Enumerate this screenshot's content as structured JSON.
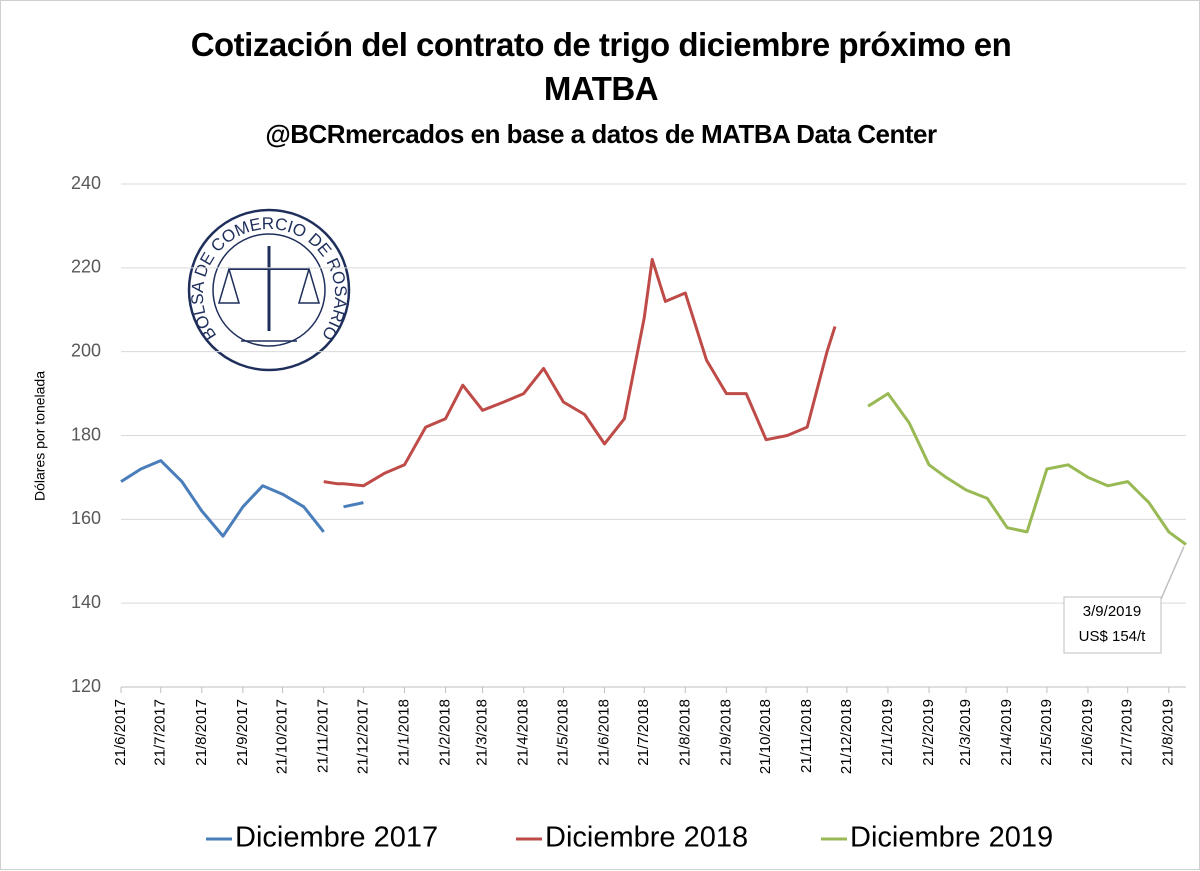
{
  "chart_data": {
    "type": "line",
    "title": "Cotización del contrato de trigo diciembre próximo en MATBA",
    "subtitle": "@BCRmercados en base a datos de MATBA Data Center",
    "y_label": "Dólares por tonelada",
    "logo_text": "BOLSA DE COMERCIO DE ROSARIO",
    "annotation": [
      "3/9/2019",
      "US$ 154/t"
    ],
    "x": [
      "21/6/2017",
      "6/7/2017",
      "21/7/2017",
      "6/8/2017",
      "21/8/2017",
      "6/9/2017",
      "21/9/2017",
      "6/10/2017",
      "21/10/2017",
      "6/11/2017",
      "21/11/2017",
      "1/12/2017",
      "6/12/2017",
      "21/12/2017",
      "6/1/2018",
      "21/1/2018",
      "6/2/2018",
      "21/2/2018",
      "6/3/2018",
      "21/3/2018",
      "6/4/2018",
      "21/4/2018",
      "6/5/2018",
      "21/5/2018",
      "6/6/2018",
      "21/6/2018",
      "6/7/2018",
      "21/7/2018",
      "27/7/2018",
      "6/8/2018",
      "21/8/2018",
      "6/9/2018",
      "21/9/2018",
      "6/10/2018",
      "21/10/2018",
      "6/11/2018",
      "21/11/2018",
      "6/12/2018",
      "12/12/2018",
      "6/1/2019",
      "21/1/2019",
      "6/2/2019",
      "21/2/2019",
      "6/3/2019",
      "21/3/2019",
      "6/4/2019",
      "21/4/2019",
      "6/5/2019",
      "21/5/2019",
      "6/6/2019",
      "21/6/2019",
      "6/7/2019",
      "21/7/2019",
      "6/8/2019",
      "21/8/2019",
      "3/9/2019"
    ],
    "series": [
      {
        "name": "Diciembre 2017",
        "color": "#4a7ebb",
        "values": [
          169,
          172,
          174,
          169,
          162,
          156,
          163,
          168,
          166,
          163,
          157,
          null,
          163,
          164,
          null,
          null,
          null,
          null,
          null,
          null,
          null,
          null,
          null,
          null,
          null,
          null,
          null,
          null,
          null,
          null,
          null,
          null,
          null,
          null,
          null,
          null,
          null,
          null,
          null,
          null,
          null,
          null,
          null,
          null,
          null,
          null,
          null,
          null,
          null,
          null,
          null,
          null,
          null,
          null,
          null,
          null
        ]
      },
      {
        "name": "Diciembre 2018",
        "color": "#be4b48",
        "values": [
          null,
          null,
          null,
          null,
          null,
          null,
          null,
          null,
          null,
          null,
          169,
          168.5,
          168.5,
          168,
          171,
          173,
          182,
          184,
          192,
          186,
          188,
          190,
          196,
          188,
          185,
          178,
          184,
          208,
          222,
          212,
          214,
          198,
          190,
          190,
          179,
          180,
          182,
          200,
          206,
          null,
          null,
          null,
          null,
          null,
          null,
          null,
          null,
          null,
          null,
          null,
          null,
          null,
          null,
          null,
          null,
          null
        ]
      },
      {
        "name": "Diciembre 2019",
        "color": "#98b954",
        "values": [
          null,
          null,
          null,
          null,
          null,
          null,
          null,
          null,
          null,
          null,
          null,
          null,
          null,
          null,
          null,
          null,
          null,
          null,
          null,
          null,
          null,
          null,
          null,
          null,
          null,
          null,
          null,
          null,
          null,
          null,
          null,
          null,
          null,
          null,
          null,
          null,
          null,
          null,
          null,
          187,
          190,
          183,
          173,
          170,
          167,
          165,
          158,
          157,
          172,
          173,
          170,
          168,
          169,
          164,
          157,
          154
        ]
      }
    ],
    "xlim": [
      "21/6/2017",
      "3/9/2019"
    ],
    "xticks": [
      "21/6/2017",
      "21/7/2017",
      "21/8/2017",
      "21/9/2017",
      "21/10/2017",
      "21/11/2017",
      "21/12/2017",
      "21/1/2018",
      "21/2/2018",
      "21/3/2018",
      "21/4/2018",
      "21/5/2018",
      "21/6/2018",
      "21/7/2018",
      "21/8/2018",
      "21/9/2018",
      "21/10/2018",
      "21/11/2018",
      "21/12/2018",
      "21/1/2019",
      "21/2/2019",
      "21/3/2019",
      "21/4/2019",
      "21/5/2019",
      "21/6/2019",
      "21/7/2019",
      "21/8/2019"
    ],
    "ylim": [
      120,
      240
    ],
    "yticks": [
      120,
      140,
      160,
      180,
      200,
      220,
      240
    ],
    "grid": true,
    "legend": "bottom"
  }
}
